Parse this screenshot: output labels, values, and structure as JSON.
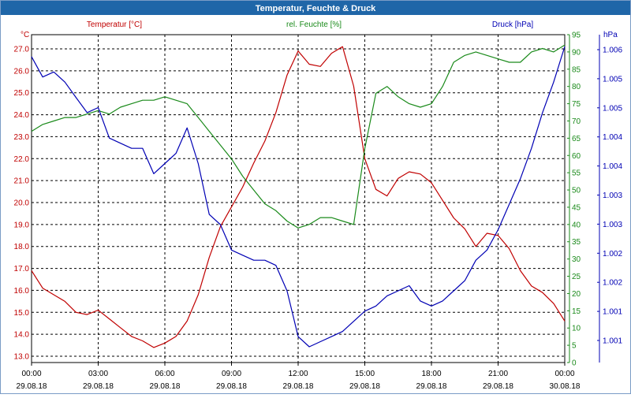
{
  "window": {
    "title": "Temperatur, Feuchte & Druck"
  },
  "colors": {
    "titlebar": "#1f66a8",
    "temperature": "#c00000",
    "humidity": "#1a8a1a",
    "pressure": "#0000b4",
    "grid": "#000000",
    "frame": "#7a9cc6"
  },
  "chart_data": {
    "type": "line",
    "title": "Temperatur, Feuchte & Druck",
    "grid": true,
    "grid_style": "dashed",
    "x_axis": {
      "ticks": [
        {
          "time": "00:00",
          "date": "29.08.18"
        },
        {
          "time": "03:00",
          "date": "29.08.18"
        },
        {
          "time": "06:00",
          "date": "29.08.18"
        },
        {
          "time": "09:00",
          "date": "29.08.18"
        },
        {
          "time": "12:00",
          "date": "29.08.18"
        },
        {
          "time": "15:00",
          "date": "29.08.18"
        },
        {
          "time": "18:00",
          "date": "29.08.18"
        },
        {
          "time": "21:00",
          "date": "29.08.18"
        },
        {
          "time": "00:00",
          "date": "30.08.18"
        }
      ],
      "range_hours": [
        0,
        24
      ]
    },
    "axes": {
      "left": {
        "label": "Temperatur [°C]",
        "unit": "°C",
        "ylim": [
          13.0,
          27.0
        ],
        "ticks": [
          "13.0",
          "14.0",
          "15.0",
          "16.0",
          "17.0",
          "18.0",
          "19.0",
          "20.0",
          "21.0",
          "22.0",
          "23.0",
          "24.0",
          "25.0",
          "26.0",
          "27.0"
        ]
      },
      "right1": {
        "label": "rel. Feuchte [%]",
        "unit": "%",
        "ylim": [
          0,
          95
        ],
        "ticks": [
          "0",
          "5",
          "10",
          "15",
          "20",
          "25",
          "30",
          "35",
          "40",
          "45",
          "50",
          "55",
          "60",
          "65",
          "70",
          "75",
          "80",
          "85",
          "90",
          "95"
        ]
      },
      "right2": {
        "label": "Druck [hPa]",
        "unit": "hPa",
        "ticks": [
          "1.001",
          "1.001",
          "1.002",
          "1.002",
          "1.003",
          "1.003",
          "1.004",
          "1.004",
          "1.005",
          "1.005",
          "1.006"
        ]
      }
    },
    "series": [
      {
        "name": "Temperatur [°C]",
        "axis": "left",
        "x": [
          0,
          0.5,
          1,
          1.5,
          2,
          2.5,
          3,
          3.5,
          4,
          4.5,
          5,
          5.5,
          6,
          6.5,
          7,
          7.5,
          8,
          8.5,
          9,
          9.5,
          10,
          10.5,
          11,
          11.5,
          12,
          12.5,
          13,
          13.5,
          14,
          14.5,
          15,
          15.5,
          16,
          16.5,
          17,
          17.5,
          18,
          18.5,
          19,
          19.5,
          20,
          20.5,
          21,
          21.5,
          22,
          22.5,
          23,
          23.5,
          24
        ],
        "values": [
          16.9,
          16.1,
          15.8,
          15.5,
          15.0,
          14.9,
          15.1,
          14.7,
          14.3,
          13.9,
          13.7,
          13.4,
          13.6,
          13.9,
          14.6,
          15.8,
          17.5,
          18.9,
          19.8,
          20.7,
          21.8,
          22.8,
          24.1,
          25.8,
          26.9,
          26.3,
          26.2,
          26.8,
          27.1,
          25.3,
          22.0,
          20.6,
          20.3,
          21.1,
          21.4,
          21.3,
          20.9,
          20.1,
          19.3,
          18.8,
          18.0,
          18.6,
          18.5,
          17.9,
          16.9,
          16.2,
          15.9,
          15.4,
          14.6
        ]
      },
      {
        "name": "rel. Feuchte [%]",
        "axis": "right1",
        "x": [
          0,
          0.5,
          1,
          1.5,
          2,
          2.5,
          3,
          3.5,
          4,
          4.5,
          5,
          5.5,
          6,
          6.5,
          7,
          7.5,
          8,
          8.5,
          9,
          9.5,
          10,
          10.5,
          11,
          11.5,
          12,
          12.5,
          13,
          13.5,
          14,
          14.5,
          15,
          15.5,
          16,
          16.5,
          17,
          17.5,
          18,
          18.5,
          19,
          19.5,
          20,
          20.5,
          21,
          21.5,
          22,
          22.5,
          23,
          23.5,
          24
        ],
        "values": [
          67,
          69,
          70,
          71,
          71,
          72,
          73,
          72,
          74,
          75,
          76,
          76,
          77,
          76,
          75,
          71,
          67,
          63,
          59,
          54,
          50,
          46,
          44,
          41,
          39,
          40,
          42,
          42,
          41,
          40,
          62,
          78,
          80,
          77,
          75,
          74,
          75,
          80,
          87,
          89,
          90,
          89,
          88,
          87,
          87,
          90,
          91,
          90,
          92
        ]
      },
      {
        "name": "Druck [hPa]",
        "axis": "right2",
        "x": [
          0,
          0.5,
          1,
          1.5,
          2,
          2.5,
          3,
          3.5,
          4,
          4.5,
          5,
          5.5,
          6,
          6.5,
          7,
          7.5,
          8,
          8.5,
          9,
          9.5,
          10,
          10.5,
          11,
          11.5,
          12,
          12.5,
          13,
          13.5,
          14,
          14.5,
          15,
          15.5,
          16,
          16.5,
          17,
          17.5,
          18,
          18.5,
          19,
          19.5,
          20,
          20.5,
          21,
          21.5,
          22,
          22.5,
          23,
          23.5,
          24
        ],
        "values": [
          1.0062,
          1.0058,
          1.0059,
          1.0057,
          1.0054,
          1.0051,
          1.0052,
          1.0046,
          1.0045,
          1.0044,
          1.0044,
          1.0039,
          1.0041,
          1.0043,
          1.0048,
          1.0041,
          1.0031,
          1.0029,
          1.0024,
          1.0023,
          1.0022,
          1.0022,
          1.0021,
          1.0016,
          1.0007,
          1.0005,
          1.0006,
          1.0007,
          1.0008,
          1.001,
          1.0012,
          1.0013,
          1.0015,
          1.0016,
          1.0017,
          1.0014,
          1.0013,
          1.0014,
          1.0016,
          1.0018,
          1.0022,
          1.0024,
          1.0028,
          1.0033,
          1.0038,
          1.0044,
          1.0051,
          1.0057,
          1.0064
        ]
      }
    ]
  }
}
